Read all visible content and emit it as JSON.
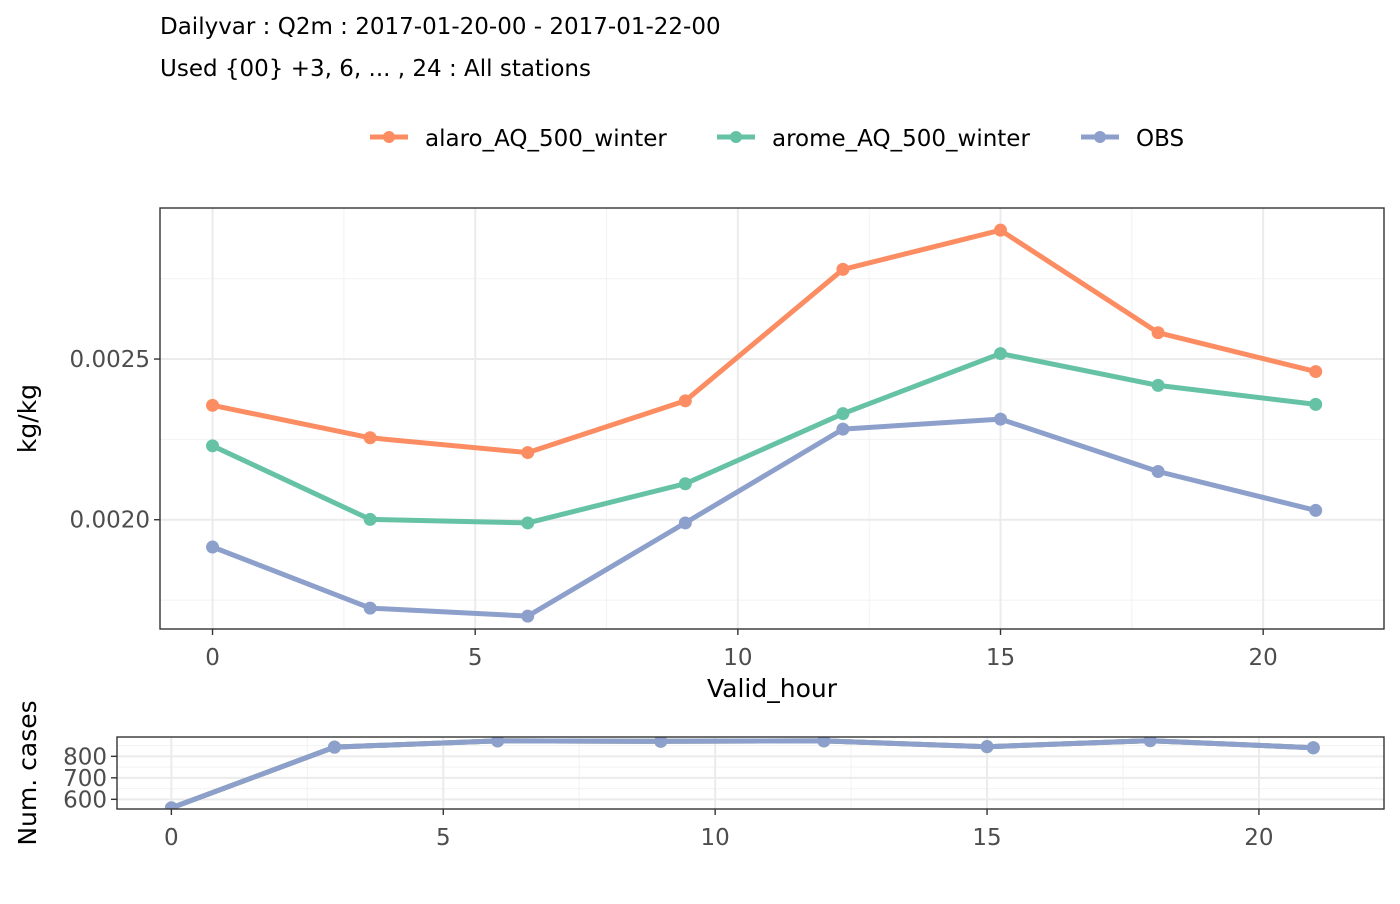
{
  "title": "Dailyvar : Q2m : 2017-01-20-00 - 2017-01-22-00",
  "subtitle": "Used {00} +3, 6, ... , 24 : All stations",
  "legend": {
    "placement": "top",
    "entries": [
      {
        "label": "alaro_AQ_500_winter",
        "color": "#fc8d62"
      },
      {
        "label": "arome_AQ_500_winter",
        "color": "#66c2a5"
      },
      {
        "label": "OBS",
        "color": "#8da0cb"
      }
    ]
  },
  "chart_data": [
    {
      "type": "line",
      "xlabel": "Valid_hour",
      "ylabel": "kg/kg",
      "xlim": [
        -1,
        22.3
      ],
      "ylim": [
        0.00166,
        0.00297
      ],
      "xticks": [
        "0",
        "5",
        "10",
        "15",
        "20"
      ],
      "yticks": [
        "0.0020",
        "0.0025"
      ],
      "grid": true,
      "x": [
        0,
        3,
        6,
        9,
        12,
        15,
        18,
        21
      ],
      "series": [
        {
          "name": "alaro_AQ_500_winter",
          "color": "#fc8d62",
          "values": [
            0.002356,
            0.002255,
            0.002209,
            0.00237,
            0.002779,
            0.002901,
            0.002582,
            0.002461
          ]
        },
        {
          "name": "arome_AQ_500_winter",
          "color": "#66c2a5",
          "values": [
            0.00223,
            0.002001,
            0.00199,
            0.002112,
            0.00233,
            0.002517,
            0.002418,
            0.002359
          ]
        },
        {
          "name": "OBS",
          "color": "#8da0cb",
          "values": [
            0.001915,
            0.001725,
            0.0017,
            0.00199,
            0.002282,
            0.002313,
            0.00215,
            0.002029
          ]
        }
      ]
    },
    {
      "type": "line",
      "xlabel": "",
      "ylabel": "Num. cases",
      "xlim": [
        -1,
        22.3
      ],
      "ylim": [
        555,
        890
      ],
      "xticks": [
        "0",
        "5",
        "10",
        "15",
        "20"
      ],
      "yticks": [
        "600",
        "700",
        "800"
      ],
      "grid": true,
      "x": [
        0,
        3,
        6,
        9,
        12,
        15,
        18,
        21
      ],
      "series": [
        {
          "name": "alaro_AQ_500_winter",
          "color": "#fc8d62",
          "values": [
            560,
            843,
            872,
            870,
            872,
            845,
            873,
            840
          ]
        },
        {
          "name": "arome_AQ_500_winter",
          "color": "#66c2a5",
          "values": [
            560,
            843,
            872,
            870,
            872,
            845,
            873,
            840
          ]
        },
        {
          "name": "OBS",
          "color": "#8da0cb",
          "values": [
            560,
            843,
            872,
            870,
            872,
            845,
            873,
            840
          ]
        }
      ]
    }
  ]
}
